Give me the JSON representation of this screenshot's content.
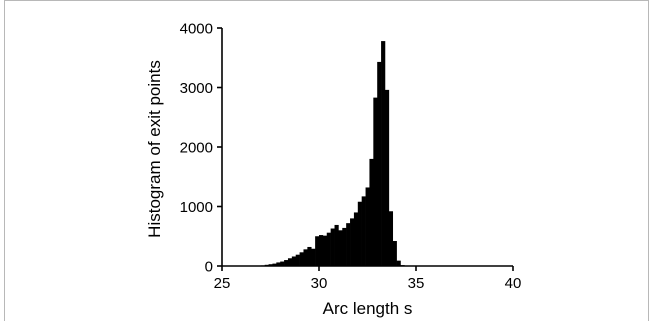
{
  "chart_data": {
    "type": "bar",
    "title": "",
    "xlabel": "Arc length s",
    "ylabel": "Histogram of exit points",
    "xlim": [
      25,
      40
    ],
    "ylim": [
      0,
      4000
    ],
    "xticks": [
      "25",
      "30",
      "35",
      "40"
    ],
    "yticks": [
      "0",
      "1000",
      "2000",
      "3000",
      "4000"
    ],
    "grid": false,
    "bin_width": 0.2,
    "bins": [
      [
        26.8,
        5
      ],
      [
        27.0,
        10
      ],
      [
        27.2,
        20
      ],
      [
        27.4,
        30
      ],
      [
        27.6,
        40
      ],
      [
        27.8,
        60
      ],
      [
        28.0,
        75
      ],
      [
        28.2,
        100
      ],
      [
        28.4,
        130
      ],
      [
        28.6,
        160
      ],
      [
        28.8,
        190
      ],
      [
        29.0,
        230
      ],
      [
        29.2,
        280
      ],
      [
        29.4,
        320
      ],
      [
        29.6,
        290
      ],
      [
        29.8,
        500
      ],
      [
        30.0,
        520
      ],
      [
        30.2,
        510
      ],
      [
        30.4,
        560
      ],
      [
        30.6,
        630
      ],
      [
        30.8,
        690
      ],
      [
        31.0,
        600
      ],
      [
        31.2,
        640
      ],
      [
        31.4,
        720
      ],
      [
        31.6,
        800
      ],
      [
        31.8,
        900
      ],
      [
        32.0,
        1080
      ],
      [
        32.2,
        1170
      ],
      [
        32.4,
        1320
      ],
      [
        32.6,
        1800
      ],
      [
        32.8,
        2830
      ],
      [
        33.0,
        3430
      ],
      [
        33.2,
        3780
      ],
      [
        33.4,
        2960
      ],
      [
        33.6,
        920
      ],
      [
        33.8,
        420
      ],
      [
        34.0,
        90
      ],
      [
        34.2,
        15
      ]
    ]
  }
}
